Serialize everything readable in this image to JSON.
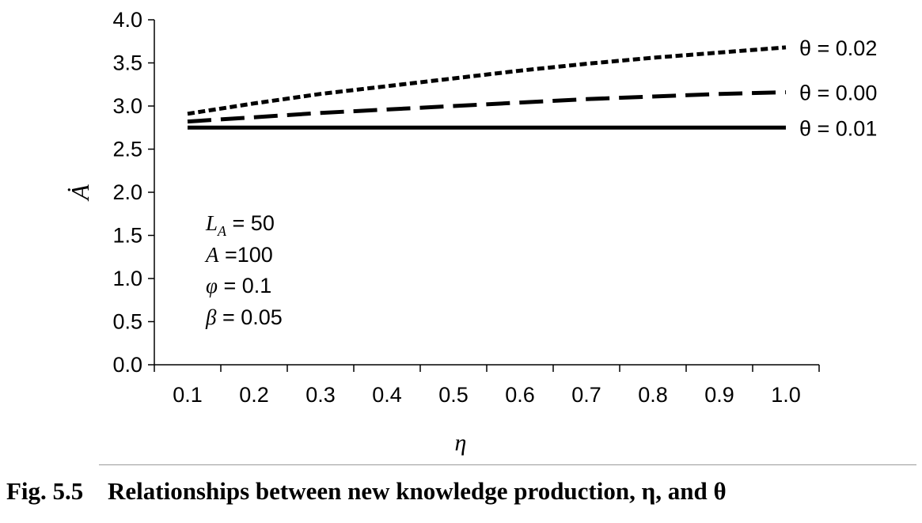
{
  "chart_data": {
    "type": "line",
    "x": [
      0.1,
      0.2,
      0.3,
      0.4,
      0.5,
      0.6,
      0.7,
      0.8,
      0.9,
      1.0
    ],
    "x_tick_labels": [
      "0.1",
      "0.2",
      "0.3",
      "0.4",
      "0.5",
      "0.6",
      "0.7",
      "0.8",
      "0.9",
      "1.0"
    ],
    "y_tick_labels": [
      "0.0",
      "0.5",
      "1.0",
      "1.5",
      "2.0",
      "2.5",
      "3.0",
      "3.5",
      "4.0"
    ],
    "ylim": [
      0,
      4.0
    ],
    "xlim": [
      0.05,
      1.05
    ],
    "xlabel": "η",
    "ylabel": "Ȧ",
    "grid": false,
    "series": [
      {
        "name": "θ = 0.02",
        "style": "dotted",
        "values": [
          2.91,
          3.03,
          3.14,
          3.23,
          3.32,
          3.41,
          3.49,
          3.56,
          3.62,
          3.68
        ]
      },
      {
        "name": "θ = 0.00",
        "style": "dashed",
        "values": [
          2.82,
          2.87,
          2.92,
          2.96,
          3.0,
          3.04,
          3.08,
          3.11,
          3.14,
          3.16
        ]
      },
      {
        "name": "θ = 0.01",
        "style": "solid",
        "values": [
          2.75,
          2.75,
          2.75,
          2.75,
          2.75,
          2.75,
          2.75,
          2.75,
          2.75,
          2.75
        ]
      }
    ],
    "annotations": [
      "L_A = 50",
      "A =100",
      "φ = 0.1",
      "β = 0.05"
    ],
    "colors": {
      "line": "#000000",
      "rule": "#9a9a9a"
    }
  },
  "caption": {
    "number": "Fig. 5.5",
    "text": "Relationships between new knowledge production, η, and θ"
  }
}
